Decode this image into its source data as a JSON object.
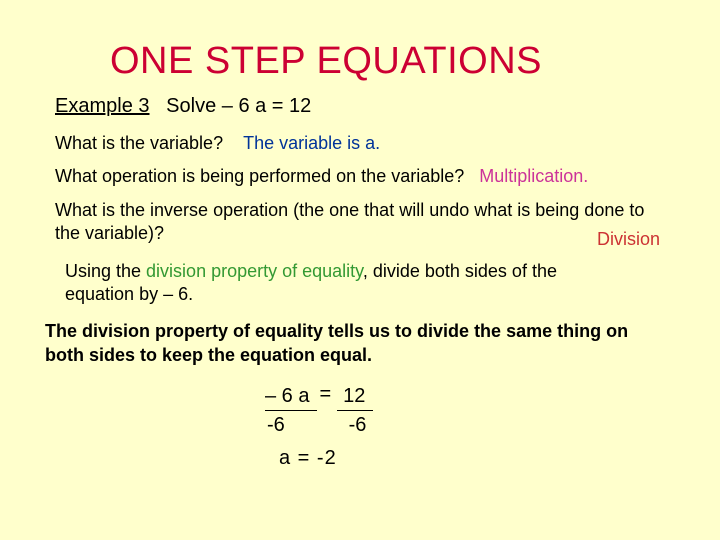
{
  "title": "ONE STEP EQUATIONS",
  "example": {
    "label": "Example 3",
    "prompt": "Solve – 6 a = 12"
  },
  "q1": {
    "question": "What is the variable?",
    "answer": "The variable is a."
  },
  "q2": {
    "question": "What operation is being performed on the variable?",
    "answer": "Multiplication."
  },
  "q3": {
    "question": "What is the inverse operation (the one that will undo what is being done to the variable)?",
    "answer": "Division"
  },
  "instruction": {
    "pre": "Using the ",
    "green": "division property of equality",
    "post": ", divide both sides of the equation by – 6."
  },
  "rule": "The division property of equality tells us to divide the same thing on both sides to keep the equation equal.",
  "work": {
    "lhs_num": "– 6 a",
    "eq": "=",
    "rhs_num": "12",
    "lhs_den": "-6",
    "rhs_den": "-6",
    "final": "a   =  -2"
  },
  "colors": {
    "background": "#ffffcc",
    "title": "#cc0033",
    "blue": "#003399",
    "pink": "#cc3399",
    "red": "#cc3333",
    "green": "#339933"
  }
}
